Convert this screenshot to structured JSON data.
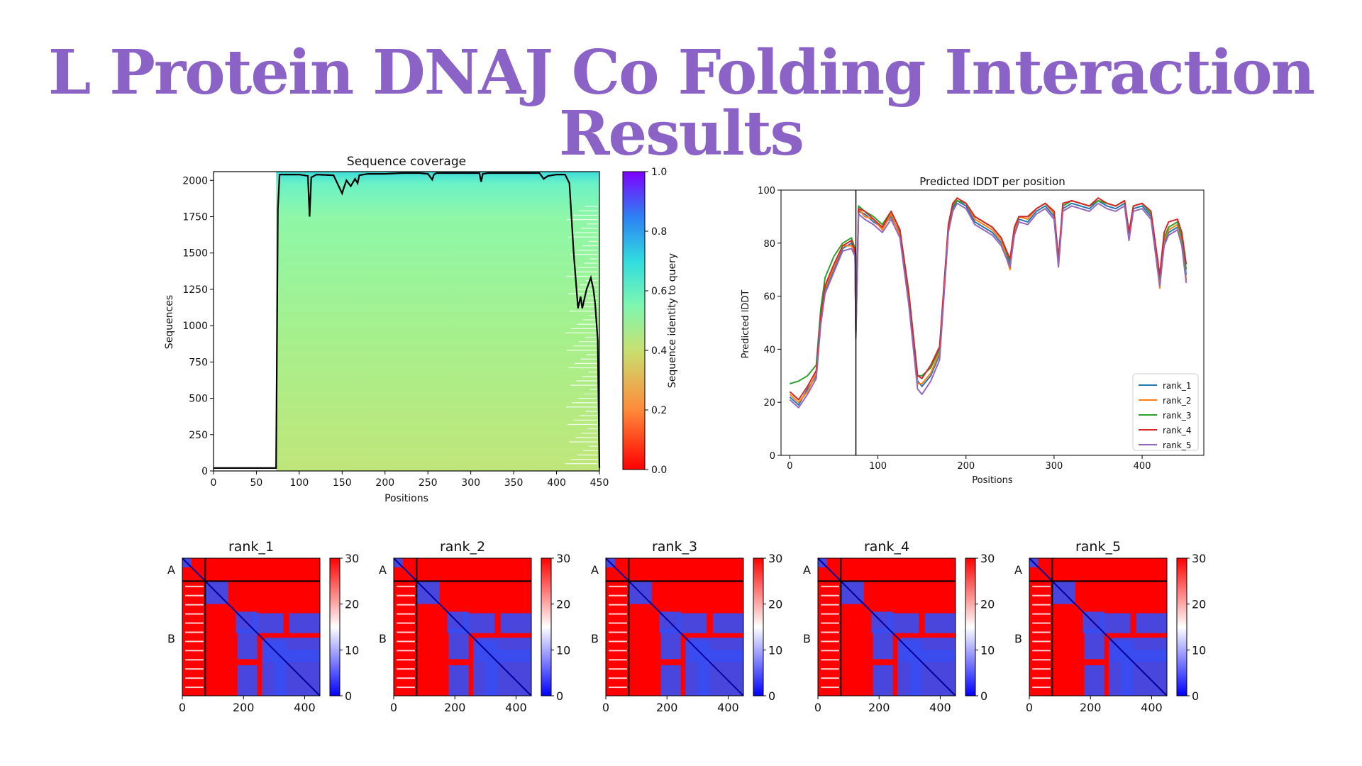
{
  "slide": {
    "title": "L Protein DNAJ Co Folding Interaction Results"
  },
  "chart_data": [
    {
      "type": "heatmap",
      "title": "Sequence coverage",
      "xlabel": "Positions",
      "ylabel": "Sequences",
      "xlim": [
        0,
        450
      ],
      "ylim": [
        0,
        2060
      ],
      "xticks": [
        0,
        50,
        100,
        150,
        200,
        250,
        300,
        350,
        400,
        450
      ],
      "yticks": [
        0,
        250,
        500,
        750,
        1000,
        1250,
        1500,
        1750,
        2000
      ],
      "colorbar": {
        "label": "Sequence identity to query",
        "range": [
          0.0,
          1.0
        ],
        "ticks": [
          "0.0",
          "0.2",
          "0.4",
          "0.6",
          "0.8",
          "1.0"
        ]
      },
      "coverage": {
        "x": [
          0,
          73,
          75,
          77,
          100,
          110,
          112,
          114,
          120,
          140,
          150,
          152,
          155,
          160,
          165,
          168,
          170,
          175,
          180,
          200,
          220,
          240,
          250,
          255,
          257,
          260,
          280,
          300,
          310,
          312,
          314,
          320,
          340,
          360,
          380,
          385,
          390,
          400,
          410,
          415,
          420,
          425,
          428,
          430,
          435,
          440,
          443,
          445,
          448,
          450
        ],
        "y": [
          20,
          20,
          1800,
          2040,
          2040,
          2030,
          1750,
          2020,
          2040,
          2035,
          1910,
          1950,
          2000,
          1960,
          2010,
          1980,
          2035,
          2040,
          2045,
          2045,
          2050,
          2050,
          2045,
          2005,
          2040,
          2050,
          2050,
          2050,
          2050,
          1990,
          2045,
          2050,
          2050,
          2050,
          2050,
          2010,
          2030,
          2040,
          2040,
          1980,
          1500,
          1120,
          1200,
          1120,
          1250,
          1330,
          1250,
          1150,
          900,
          20
        ]
      }
    },
    {
      "type": "line",
      "title": "Predicted lDDT per position",
      "xlabel": "Positions",
      "ylabel": "Predicted lDDT",
      "xlim": [
        -10,
        470
      ],
      "ylim": [
        0,
        100
      ],
      "xticks": [
        0,
        100,
        200,
        300,
        400
      ],
      "yticks": [
        0,
        20,
        40,
        60,
        80,
        100
      ],
      "legend": "lower-right",
      "vline_x": 75,
      "x": [
        0,
        10,
        20,
        30,
        35,
        40,
        50,
        60,
        70,
        74,
        75,
        78,
        85,
        95,
        105,
        115,
        125,
        135,
        145,
        150,
        160,
        170,
        180,
        185,
        190,
        200,
        210,
        220,
        230,
        240,
        250,
        255,
        260,
        270,
        280,
        290,
        300,
        305,
        310,
        320,
        330,
        340,
        350,
        360,
        370,
        380,
        385,
        390,
        400,
        410,
        420,
        425,
        430,
        440,
        445,
        450
      ],
      "series": [
        {
          "name": "rank_1",
          "color": "#1f77b4",
          "values": [
            22,
            19,
            25,
            30,
            50,
            62,
            70,
            78,
            80,
            76,
            45,
            92,
            91,
            88,
            86,
            90,
            84,
            60,
            28,
            26,
            30,
            38,
            85,
            93,
            96,
            94,
            88,
            86,
            84,
            80,
            72,
            84,
            89,
            88,
            92,
            94,
            90,
            72,
            93,
            95,
            94,
            93,
            96,
            94,
            93,
            95,
            82,
            93,
            94,
            90,
            65,
            80,
            84,
            86,
            80,
            68
          ]
        },
        {
          "name": "rank_2",
          "color": "#ff7f0e",
          "values": [
            23,
            20,
            24,
            31,
            51,
            63,
            71,
            79,
            79,
            77,
            46,
            93,
            90,
            89,
            85,
            91,
            83,
            58,
            27,
            27,
            31,
            39,
            86,
            94,
            97,
            95,
            89,
            87,
            85,
            81,
            70,
            85,
            90,
            89,
            93,
            95,
            91,
            73,
            94,
            96,
            95,
            94,
            97,
            95,
            94,
            96,
            83,
            94,
            95,
            91,
            63,
            81,
            85,
            87,
            81,
            66
          ]
        },
        {
          "name": "rank_3",
          "color": "#2ca02c",
          "values": [
            27,
            28,
            30,
            34,
            55,
            67,
            75,
            80,
            82,
            78,
            47,
            94,
            92,
            90,
            87,
            92,
            85,
            62,
            30,
            30,
            33,
            40,
            86,
            94,
            96,
            95,
            90,
            88,
            86,
            82,
            73,
            86,
            90,
            90,
            93,
            95,
            92,
            74,
            94,
            96,
            95,
            94,
            96,
            95,
            94,
            96,
            84,
            94,
            95,
            91,
            67,
            82,
            86,
            88,
            82,
            70
          ]
        },
        {
          "name": "rank_4",
          "color": "#d62728",
          "values": [
            24,
            21,
            26,
            32,
            52,
            64,
            72,
            79,
            81,
            77,
            46,
            93,
            92,
            89,
            86,
            92,
            85,
            61,
            30,
            29,
            34,
            41,
            87,
            95,
            97,
            95,
            90,
            88,
            86,
            82,
            74,
            86,
            90,
            90,
            93,
            95,
            92,
            74,
            95,
            96,
            95,
            94,
            97,
            95,
            94,
            96,
            84,
            94,
            95,
            92,
            68,
            84,
            88,
            89,
            84,
            72
          ]
        },
        {
          "name": "rank_5",
          "color": "#9467bd",
          "values": [
            21,
            18,
            23,
            29,
            49,
            61,
            69,
            77,
            78,
            75,
            44,
            91,
            89,
            87,
            84,
            89,
            82,
            57,
            25,
            23,
            28,
            36,
            84,
            92,
            95,
            93,
            87,
            85,
            83,
            79,
            71,
            83,
            88,
            87,
            91,
            93,
            89,
            71,
            92,
            94,
            93,
            92,
            95,
            93,
            92,
            94,
            81,
            92,
            93,
            89,
            64,
            79,
            83,
            85,
            79,
            65
          ]
        }
      ]
    },
    {
      "type": "heatmap",
      "title": "rank_1",
      "xticks": [
        0,
        200,
        400
      ],
      "yticks": [
        "A",
        "B"
      ],
      "chain_break": 75,
      "length": 450,
      "colorbar": {
        "range": [
          0,
          30
        ],
        "ticks": [
          "0",
          "10",
          "20",
          "30"
        ]
      }
    },
    {
      "type": "heatmap",
      "title": "rank_2",
      "xticks": [
        0,
        200,
        400
      ],
      "yticks": [
        "A",
        "B"
      ],
      "chain_break": 75,
      "length": 450,
      "colorbar": {
        "range": [
          0,
          30
        ],
        "ticks": [
          "0",
          "10",
          "20",
          "30"
        ]
      }
    },
    {
      "type": "heatmap",
      "title": "rank_3",
      "xticks": [
        0,
        200,
        400
      ],
      "yticks": [
        "A",
        "B"
      ],
      "chain_break": 75,
      "length": 450,
      "colorbar": {
        "range": [
          0,
          30
        ],
        "ticks": [
          "0",
          "10",
          "20",
          "30"
        ]
      }
    },
    {
      "type": "heatmap",
      "title": "rank_4",
      "xticks": [
        0,
        200,
        400
      ],
      "yticks": [
        "A",
        "B"
      ],
      "chain_break": 75,
      "length": 450,
      "colorbar": {
        "range": [
          0,
          30
        ],
        "ticks": [
          "0",
          "10",
          "20",
          "30"
        ]
      }
    },
    {
      "type": "heatmap",
      "title": "rank_5",
      "xticks": [
        0,
        200,
        400
      ],
      "yticks": [
        "A",
        "B"
      ],
      "chain_break": 75,
      "length": 450,
      "colorbar": {
        "range": [
          0,
          30
        ],
        "ticks": [
          "0",
          "10",
          "20",
          "30"
        ]
      }
    }
  ]
}
